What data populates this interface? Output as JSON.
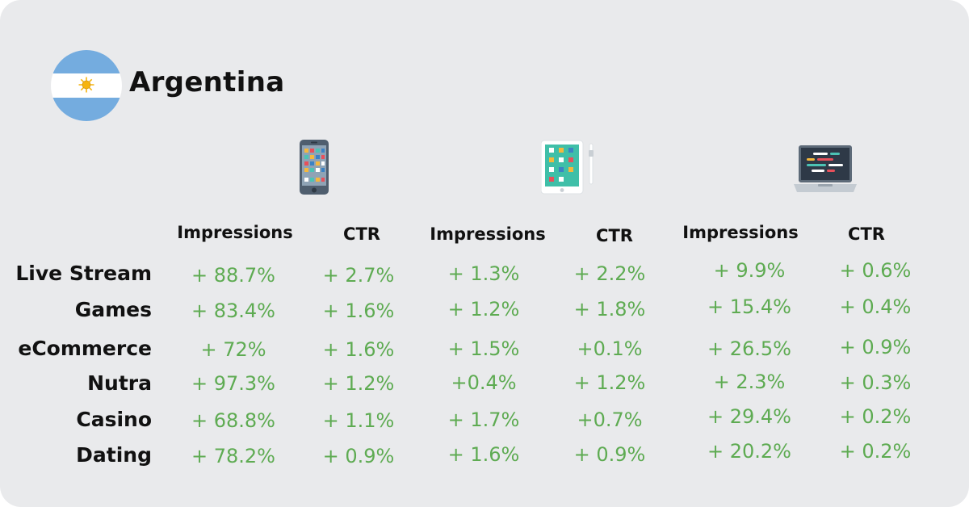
{
  "country": "Argentina",
  "columns": [
    "Impressions",
    "CTR",
    "Impressions",
    "CTR",
    "Impressions",
    "CTR"
  ],
  "device_icons": [
    "smartphone-icon",
    "tablet-icon",
    "laptop-icon"
  ],
  "colors": {
    "background": "#e9eaec",
    "value": "#5eab52",
    "text": "#111111",
    "flag_blue": "#74acdf",
    "sun": "#f6b40e"
  },
  "rows": [
    {
      "label": "Live Stream",
      "values": [
        "+ 88.7%",
        "+ 2.7%",
        "+ 1.3%",
        "+ 2.2%",
        "+ 9.9%",
        "+ 0.6%"
      ]
    },
    {
      "label": "Games",
      "values": [
        "+ 83.4%",
        "+ 1.6%",
        "+ 1.2%",
        "+ 1.8%",
        "+ 15.4%",
        "+ 0.4%"
      ]
    },
    {
      "label": "eCommerce",
      "values": [
        "+ 72%",
        "+ 1.6%",
        "+ 1.5%",
        "+0.1%",
        "+ 26.5%",
        "+ 0.9%"
      ]
    },
    {
      "label": "Nutra",
      "values": [
        "+ 97.3%",
        "+ 1.2%",
        "+0.4%",
        "+ 1.2%",
        "+ 2.3%",
        "+ 0.3%"
      ]
    },
    {
      "label": "Casino",
      "values": [
        "+ 68.8%",
        "+ 1.1%",
        "+ 1.7%",
        "+0.7%",
        "+ 29.4%",
        "+ 0.2%"
      ]
    },
    {
      "label": "Dating",
      "values": [
        "+ 78.2%",
        "+ 0.9%",
        "+ 1.6%",
        "+ 0.9%",
        "+ 20.2%",
        "+ 0.2%"
      ]
    }
  ]
}
